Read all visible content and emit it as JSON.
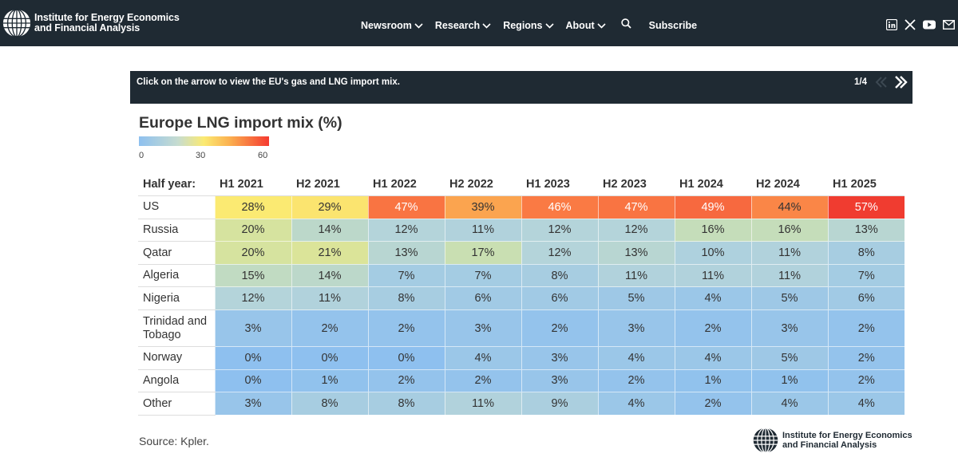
{
  "header": {
    "logo_line1": "Institute for Energy Economics",
    "logo_line2": "and Financial Analysis",
    "nav": [
      {
        "label": "Newsroom",
        "dropdown": true
      },
      {
        "label": "Research",
        "dropdown": true
      },
      {
        "label": "Regions",
        "dropdown": true
      },
      {
        "label": "About",
        "dropdown": true
      }
    ],
    "subscribe_label": "Subscribe",
    "social_icons": [
      "linkedin-icon",
      "x-icon",
      "youtube-icon",
      "email-icon"
    ]
  },
  "slider": {
    "instruction": "Click on the arrow to view the EU's gas and LNG import mix.",
    "counter": "1/4"
  },
  "colors": {
    "nav_bg": "#1f2a33",
    "scale_low": "#8ec0ef",
    "scale_mid": "#fbea72",
    "scale_high": "#f53a30"
  },
  "chart_data": {
    "type": "heatmap",
    "title": "Europe LNG import mix (%)",
    "legend": {
      "min": 0,
      "mid": 30,
      "max": 60,
      "min_label": "0",
      "mid_label": "30",
      "max_label": "60"
    },
    "row_header": "Half year:",
    "columns": [
      "H1 2021",
      "H2 2021",
      "H1 2022",
      "H2 2022",
      "H1 2023",
      "H2 2023",
      "H1 2024",
      "H2 2024",
      "H1 2025"
    ],
    "rows": [
      {
        "label": "US",
        "values": [
          28,
          29,
          47,
          39,
          46,
          47,
          49,
          44,
          57
        ]
      },
      {
        "label": "Russia",
        "values": [
          20,
          14,
          12,
          11,
          12,
          12,
          16,
          16,
          13
        ]
      },
      {
        "label": "Qatar",
        "values": [
          20,
          21,
          13,
          17,
          12,
          13,
          10,
          11,
          8
        ]
      },
      {
        "label": "Algeria",
        "values": [
          15,
          14,
          7,
          7,
          8,
          11,
          11,
          11,
          7
        ]
      },
      {
        "label": "Nigeria",
        "values": [
          12,
          11,
          8,
          6,
          6,
          5,
          4,
          5,
          6
        ]
      },
      {
        "label": "Trinidad and Tobago",
        "values": [
          3,
          2,
          2,
          3,
          2,
          3,
          2,
          3,
          2
        ]
      },
      {
        "label": "Norway",
        "values": [
          0,
          0,
          0,
          4,
          3,
          4,
          4,
          5,
          2
        ]
      },
      {
        "label": "Angola",
        "values": [
          0,
          1,
          2,
          2,
          3,
          2,
          1,
          1,
          2
        ]
      },
      {
        "label": "Other",
        "values": [
          3,
          8,
          8,
          11,
          9,
          4,
          2,
          4,
          4
        ]
      }
    ],
    "value_suffix": "%",
    "source": "Source: Kpler."
  },
  "footer": {
    "logo_line1": "Institute for Energy Economics",
    "logo_line2": "and Financial Analysis"
  }
}
